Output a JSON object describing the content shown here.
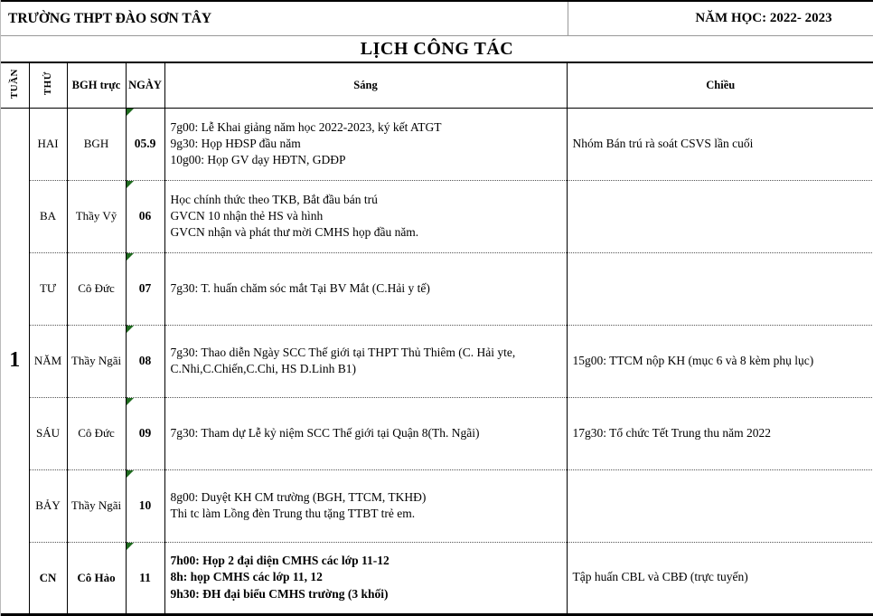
{
  "header": {
    "school": "TRƯỜNG THPT ĐÀO SƠN TÂY",
    "year": "NĂM HỌC: 2022- 2023",
    "title": "LỊCH CÔNG TÁC"
  },
  "table": {
    "week": "1",
    "columns": {
      "tuan": "TUẦN",
      "thu": "THỨ",
      "bgh": "BGH trực",
      "ngay": "NGÀY",
      "sang": "Sáng",
      "chieu": "Chiều"
    },
    "rows": [
      {
        "thu": "HAI",
        "bgh": "BGH",
        "ngay": "05.9",
        "sang": "7g00: Lễ Khai giảng năm học 2022-2023, ký kết ATGT\n9g30: Họp HĐSP đầu năm\n10g00: Họp GV dạy HĐTN, GDĐP",
        "chieu": "Nhóm Bán trú rà soát CSVS lần cuối"
      },
      {
        "thu": "BA",
        "bgh": "Thầy Vỹ",
        "ngay": "06",
        "sang": "Học chính thức theo TKB, Bắt đầu bán trú\nGVCN 10 nhận thẻ HS và hình\nGVCN nhận và phát thư mời CMHS họp đầu năm.",
        "chieu": ""
      },
      {
        "thu": "TƯ",
        "bgh": "Cô Đức",
        "ngay": "07",
        "sang": "7g30: T. huấn chăm sóc mắt Tại BV Mắt (C.Hải y tế)",
        "chieu": ""
      },
      {
        "thu": "NĂM",
        "bgh": "Thầy Ngãi",
        "ngay": "08",
        "sang": "7g30: Thao diễn Ngày SCC Thế giới tại THPT Thủ Thiêm (C. Hải yte,\nC.Nhi,C.Chiến,C.Chi, HS D.Linh B1)",
        "chieu": "15g00: TTCM nộp KH (mục 6 và 8 kèm phụ lục)"
      },
      {
        "thu": "SÁU",
        "bgh": "Cô Đức",
        "ngay": "09",
        "sang": "7g30: Tham dự Lễ kỷ niệm SCC Thế giới tại Quận 8(Th. Ngãi)",
        "chieu": "17g30: Tổ chức Tết Trung thu năm 2022"
      },
      {
        "thu": "BẢY",
        "bgh": "Thầy Ngãi",
        "ngay": "10",
        "sang": "8g00: Duyệt KH CM trường (BGH, TTCM, TKHĐ)\nThi tc làm Lồng đèn Trung thu tặng TTBT trẻ em.",
        "chieu": ""
      },
      {
        "thu": "CN",
        "bgh": "Cô Hảo",
        "ngay": "11",
        "sang": "7h00: Họp 2 đại diện CMHS các lớp 11-12\n8h: họp CMHS các lớp 11, 12\n9h30: ĐH đại biểu CMHS trường (3 khối)",
        "chieu": "Tập huấn CBL và CBĐ (trực tuyến)"
      }
    ]
  },
  "colors": {
    "note_triangle": "#1f6b1f",
    "border": "#000000"
  }
}
